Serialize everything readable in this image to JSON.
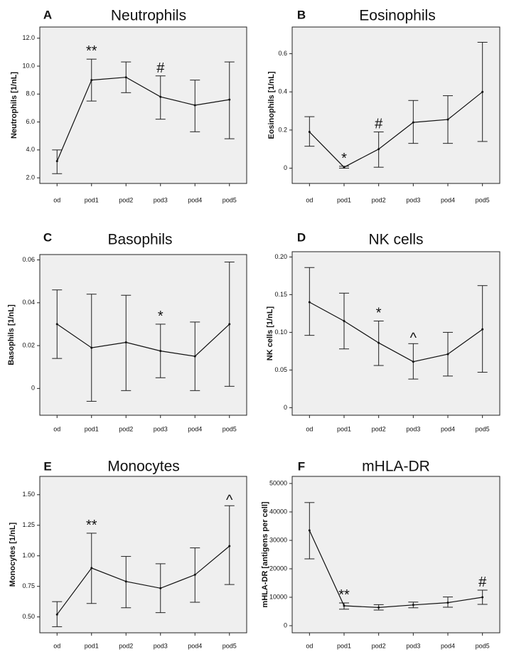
{
  "figure": {
    "panel_count": 6
  },
  "chart_data": [
    {
      "panel": "A",
      "title": "Neutrophils",
      "type": "line",
      "ylabel": "Neutrophils [1/nL]",
      "categories": [
        "od",
        "pod1",
        "pod2",
        "pod3",
        "pod4",
        "pod5"
      ],
      "values": [
        3.2,
        9.0,
        9.2,
        7.8,
        7.2,
        7.6
      ],
      "err_low": [
        2.3,
        7.5,
        8.1,
        6.2,
        5.3,
        4.8
      ],
      "err_high": [
        4.0,
        10.5,
        10.3,
        9.3,
        9.0,
        10.3
      ],
      "ylim": [
        1.6,
        12.8
      ],
      "yticks": [
        2.0,
        4.0,
        6.0,
        8.0,
        10.0,
        12.0
      ],
      "ytick_labels": [
        "2.0",
        "4.0",
        "6.0",
        "8.0",
        "10.0",
        "12.0"
      ],
      "annotations": [
        {
          "category": "pod1",
          "text": "**"
        },
        {
          "category": "pod3",
          "text": "#"
        }
      ]
    },
    {
      "panel": "B",
      "title": "Eosinophils",
      "type": "line",
      "ylabel": "Eosinophils [1/nL]",
      "categories": [
        "od",
        "pod1",
        "pod2",
        "pod3",
        "pod4",
        "pod5"
      ],
      "values": [
        0.19,
        0.005,
        0.1,
        0.24,
        0.255,
        0.4
      ],
      "err_low": [
        0.115,
        0.0,
        0.005,
        0.13,
        0.13,
        0.14
      ],
      "err_high": [
        0.27,
        0.01,
        0.19,
        0.355,
        0.38,
        0.66
      ],
      "ylim": [
        -0.08,
        0.74
      ],
      "yticks": [
        0,
        0.2,
        0.4,
        0.6
      ],
      "ytick_labels": [
        "0",
        "0.2",
        "0.4",
        "0.6"
      ],
      "annotations": [
        {
          "category": "pod1",
          "text": "*"
        },
        {
          "category": "pod2",
          "text": "#"
        }
      ]
    },
    {
      "panel": "C",
      "title": "Basophils",
      "type": "line",
      "ylabel": "Basophils [1/nL]",
      "categories": [
        "od",
        "pod1",
        "pod2",
        "pod3",
        "pod4",
        "pod5"
      ],
      "values": [
        0.03,
        0.019,
        0.0215,
        0.0175,
        0.015,
        0.03
      ],
      "err_low": [
        0.014,
        -0.006,
        -0.001,
        0.005,
        -0.001,
        0.001
      ],
      "err_high": [
        0.046,
        0.044,
        0.0435,
        0.03,
        0.031,
        0.059
      ],
      "ylim": [
        -0.0125,
        0.0625
      ],
      "yticks": [
        0,
        0.02,
        0.04,
        0.06
      ],
      "ytick_labels": [
        "0",
        "0.02",
        "0.04",
        "0.06"
      ],
      "annotations": [
        {
          "category": "pod3",
          "text": "*"
        }
      ]
    },
    {
      "panel": "D",
      "title": "NK cells",
      "type": "line",
      "ylabel": "NK cells [1/nL]",
      "categories": [
        "od",
        "pod1",
        "pod2",
        "pod3",
        "pod4",
        "pod5"
      ],
      "values": [
        0.14,
        0.115,
        0.086,
        0.061,
        0.071,
        0.104
      ],
      "err_low": [
        0.096,
        0.078,
        0.056,
        0.038,
        0.042,
        0.047
      ],
      "err_high": [
        0.186,
        0.152,
        0.115,
        0.085,
        0.1,
        0.162
      ],
      "ylim": [
        -0.01,
        0.207
      ],
      "yticks": [
        0,
        0.05,
        0.1,
        0.15,
        0.2
      ],
      "ytick_labels": [
        "0",
        "0.05",
        "0.10",
        "0.15",
        "0.20"
      ],
      "annotations": [
        {
          "category": "pod2",
          "text": "*"
        },
        {
          "category": "pod3",
          "text": "^"
        }
      ]
    },
    {
      "panel": "E",
      "title": "Monocytes",
      "type": "line",
      "ylabel": "Monocytes [1/nL]",
      "categories": [
        "od",
        "pod1",
        "pod2",
        "pod3",
        "pod4",
        "pod5"
      ],
      "values": [
        0.52,
        0.9,
        0.79,
        0.735,
        0.845,
        1.08
      ],
      "err_low": [
        0.42,
        0.61,
        0.575,
        0.535,
        0.62,
        0.765
      ],
      "err_high": [
        0.625,
        1.185,
        0.995,
        0.935,
        1.065,
        1.41
      ],
      "ylim": [
        0.37,
        1.65
      ],
      "yticks": [
        0.5,
        0.75,
        1.0,
        1.25,
        1.5
      ],
      "ytick_labels": [
        "0.50",
        "0.75",
        "1.00",
        "1.25",
        "1.50"
      ],
      "annotations": [
        {
          "category": "pod1",
          "text": "**"
        },
        {
          "category": "pod5",
          "text": "^"
        }
      ]
    },
    {
      "panel": "F",
      "title": "mHLA-DR",
      "type": "line",
      "ylabel": "mHLA-DR [antigens per cell]",
      "categories": [
        "od",
        "pod1",
        "pod2",
        "pod3",
        "pod4",
        "pod5"
      ],
      "values": [
        33500,
        7000,
        6400,
        7300,
        8100,
        10000
      ],
      "err_low": [
        23500,
        5800,
        5500,
        6300,
        6500,
        7500
      ],
      "err_high": [
        43300,
        8000,
        7400,
        8300,
        10100,
        12500
      ],
      "ylim": [
        -2500,
        52500
      ],
      "yticks": [
        0,
        10000,
        20000,
        30000,
        40000,
        50000
      ],
      "ytick_labels": [
        "0",
        "10000",
        "20000",
        "30000",
        "40000",
        "50000"
      ],
      "annotations": [
        {
          "category": "pod1",
          "text": "**"
        },
        {
          "category": "pod5",
          "text": "#"
        }
      ]
    }
  ]
}
